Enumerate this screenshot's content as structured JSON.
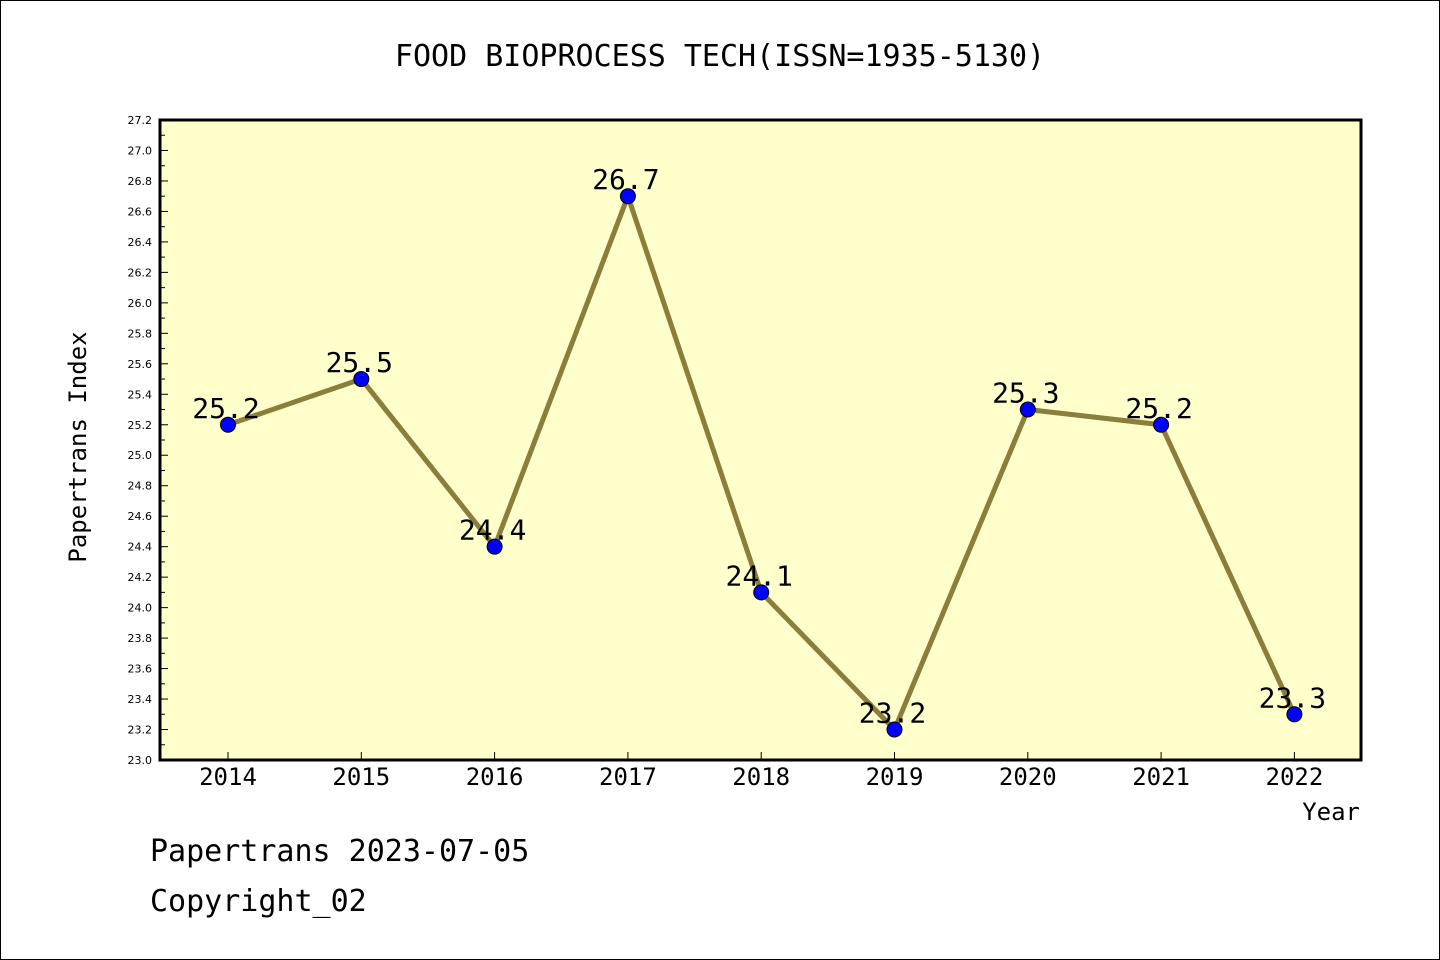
{
  "chart_data": {
    "type": "line",
    "title": "FOOD BIOPROCESS TECH(ISSN=1935-5130)",
    "xlabel": "Year",
    "ylabel": "Papertrans Index",
    "categories": [
      "2014",
      "2015",
      "2016",
      "2017",
      "2018",
      "2019",
      "2020",
      "2021",
      "2022"
    ],
    "series": [
      {
        "values": [
          25.2,
          25.5,
          24.4,
          26.7,
          24.1,
          23.2,
          25.3,
          25.2,
          23.3
        ],
        "data_labels": [
          "25.2",
          "25.5",
          "24.4",
          "26.7",
          "24.1",
          "23.2",
          "25.3",
          "25.2",
          "23.3"
        ]
      }
    ],
    "ylim": [
      23.0,
      27.2
    ],
    "y_ticks": [
      "23.0",
      "23.2",
      "23.4",
      "23.6",
      "23.8",
      "24.0",
      "24.2",
      "24.4",
      "24.6",
      "24.8",
      "25.0",
      "25.2",
      "25.4",
      "25.6",
      "25.8",
      "26.0",
      "26.2",
      "26.4",
      "26.6",
      "26.8",
      "27.0",
      "27.2"
    ],
    "grid": false,
    "colors": {
      "plot_background": "#FFFFCC",
      "line": "#8B7D3A",
      "marker": "#0000FF"
    }
  },
  "footer": {
    "line1": "Papertrans 2023-07-05",
    "line2": "Copyright_02"
  }
}
